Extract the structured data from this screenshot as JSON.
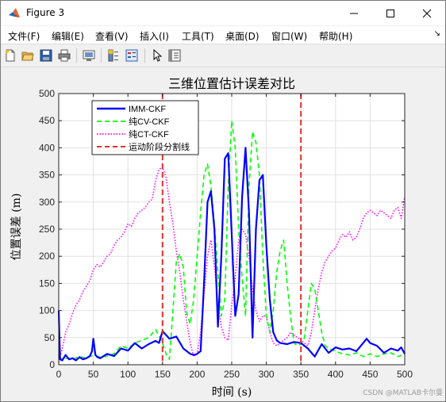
{
  "window": {
    "title": "Figure 3",
    "minimize_icon": "minimize-icon",
    "maximize_icon": "maximize-icon",
    "close_icon": "close-icon"
  },
  "menu": [
    {
      "label": "文件(F)"
    },
    {
      "label": "编辑(E)"
    },
    {
      "label": "查看(V)"
    },
    {
      "label": "插入(I)"
    },
    {
      "label": "工具(T)"
    },
    {
      "label": "桌面(D)"
    },
    {
      "label": "窗口(W)"
    },
    {
      "label": "帮助(H)"
    }
  ],
  "toolbar": {
    "icons": [
      "new-figure-icon",
      "open-file-icon",
      "save-icon",
      "print-icon",
      "link-plot-icon",
      "colorbar-icon",
      "legend-icon",
      "pointer-icon",
      "property-inspector-icon"
    ]
  },
  "watermark": "CSDN @MATLAB卡尔曼",
  "chart_data": {
    "type": "line",
    "title": "三维位置估计误差对比",
    "xlabel": "时间 (s)",
    "ylabel": "位置误差 (m)",
    "xlim": [
      0,
      500
    ],
    "ylim": [
      0,
      500
    ],
    "xticks": [
      0,
      50,
      100,
      150,
      200,
      250,
      300,
      350,
      400,
      450,
      500
    ],
    "yticks": [
      0,
      50,
      100,
      150,
      200,
      250,
      300,
      350,
      400,
      450,
      500
    ],
    "grid": true,
    "legend_position": "top-left",
    "colors": {
      "imm": "#0000ff",
      "cv": "#00ff00",
      "ct": "#ff00ff",
      "phase": "#e03030"
    },
    "series": [
      {
        "name": "IMM-CKF",
        "style": "solid",
        "x": [
          0,
          2,
          5,
          10,
          15,
          20,
          25,
          30,
          35,
          40,
          45,
          48,
          50,
          53,
          56,
          60,
          70,
          80,
          90,
          100,
          110,
          120,
          130,
          140,
          145,
          150,
          155,
          160,
          170,
          180,
          190,
          195,
          200,
          205,
          210,
          215,
          220,
          225,
          230,
          235,
          240,
          245,
          250,
          255,
          260,
          265,
          270,
          275,
          280,
          285,
          290,
          295,
          300,
          305,
          310,
          315,
          320,
          330,
          340,
          350,
          355,
          360,
          370,
          380,
          390,
          400,
          410,
          420,
          430,
          440,
          445,
          450,
          460,
          470,
          480,
          490,
          495,
          500
        ],
        "y": [
          100,
          10,
          8,
          18,
          10,
          12,
          8,
          14,
          10,
          12,
          16,
          25,
          48,
          18,
          14,
          12,
          20,
          16,
          30,
          26,
          40,
          30,
          38,
          44,
          40,
          62,
          55,
          48,
          52,
          30,
          20,
          18,
          20,
          25,
          150,
          300,
          320,
          250,
          70,
          200,
          380,
          390,
          240,
          90,
          130,
          310,
          400,
          280,
          50,
          250,
          340,
          350,
          220,
          120,
          60,
          45,
          40,
          38,
          42,
          40,
          35,
          30,
          15,
          38,
          22,
          32,
          28,
          30,
          25,
          40,
          48,
          40,
          35,
          22,
          30,
          26,
          32,
          20
        ]
      },
      {
        "name": "纯CV-CKF",
        "style": "dashed",
        "x": [
          0,
          5,
          10,
          20,
          30,
          40,
          50,
          60,
          70,
          80,
          90,
          100,
          110,
          120,
          130,
          140,
          150,
          155,
          160,
          165,
          170,
          175,
          180,
          185,
          190,
          195,
          200,
          205,
          210,
          215,
          220,
          225,
          230,
          235,
          240,
          245,
          250,
          255,
          260,
          265,
          270,
          275,
          280,
          285,
          290,
          295,
          300,
          305,
          310,
          315,
          320,
          325,
          330,
          335,
          340,
          345,
          350,
          355,
          360,
          365,
          370,
          375,
          380,
          385,
          390,
          400,
          410,
          420,
          430,
          440,
          450,
          460,
          470,
          480,
          490,
          500
        ],
        "y": [
          15,
          10,
          12,
          10,
          15,
          12,
          18,
          14,
          16,
          20,
          35,
          30,
          40,
          45,
          50,
          65,
          40,
          20,
          10,
          100,
          190,
          205,
          180,
          95,
          75,
          120,
          200,
          280,
          350,
          370,
          330,
          260,
          170,
          90,
          120,
          330,
          450,
          400,
          250,
          160,
          90,
          330,
          430,
          410,
          350,
          200,
          90,
          60,
          100,
          170,
          210,
          230,
          150,
          90,
          40,
          35,
          38,
          50,
          100,
          150,
          140,
          100,
          60,
          35,
          30,
          25,
          20,
          18,
          22,
          15,
          20,
          15,
          20,
          22,
          15,
          20
        ]
      },
      {
        "name": "纯CT-CKF",
        "style": "dotted",
        "x": [
          0,
          5,
          10,
          15,
          20,
          25,
          30,
          35,
          40,
          45,
          50,
          55,
          60,
          65,
          70,
          75,
          80,
          85,
          90,
          95,
          100,
          105,
          110,
          115,
          120,
          125,
          130,
          135,
          140,
          145,
          150,
          155,
          160,
          165,
          170,
          175,
          180,
          185,
          190,
          195,
          200,
          205,
          210,
          215,
          220,
          225,
          230,
          235,
          240,
          245,
          250,
          255,
          260,
          265,
          270,
          275,
          280,
          285,
          290,
          295,
          300,
          305,
          310,
          315,
          320,
          325,
          330,
          335,
          340,
          345,
          350,
          355,
          360,
          365,
          370,
          375,
          380,
          385,
          390,
          395,
          400,
          405,
          410,
          415,
          420,
          425,
          430,
          435,
          440,
          445,
          450,
          455,
          460,
          465,
          470,
          475,
          480,
          485,
          490,
          495,
          500
        ],
        "y": [
          5,
          30,
          60,
          75,
          95,
          110,
          120,
          135,
          145,
          155,
          175,
          185,
          180,
          190,
          200,
          205,
          220,
          230,
          235,
          245,
          260,
          255,
          270,
          280,
          285,
          290,
          300,
          305,
          340,
          360,
          365,
          345,
          300,
          260,
          210,
          170,
          120,
          80,
          40,
          15,
          20,
          60,
          130,
          200,
          230,
          180,
          110,
          70,
          50,
          45,
          110,
          160,
          230,
          250,
          240,
          200,
          140,
          100,
          80,
          90,
          90,
          60,
          40,
          35,
          40,
          45,
          50,
          60,
          55,
          50,
          45,
          40,
          35,
          60,
          100,
          140,
          170,
          190,
          200,
          210,
          215,
          230,
          240,
          235,
          245,
          230,
          235,
          250,
          270,
          280,
          285,
          280,
          275,
          285,
          280,
          275,
          270,
          285,
          290,
          270,
          310
        ]
      }
    ],
    "phase_lines": {
      "name": "运动阶段分割线",
      "x": [
        150,
        350
      ],
      "style": "dashed"
    }
  }
}
